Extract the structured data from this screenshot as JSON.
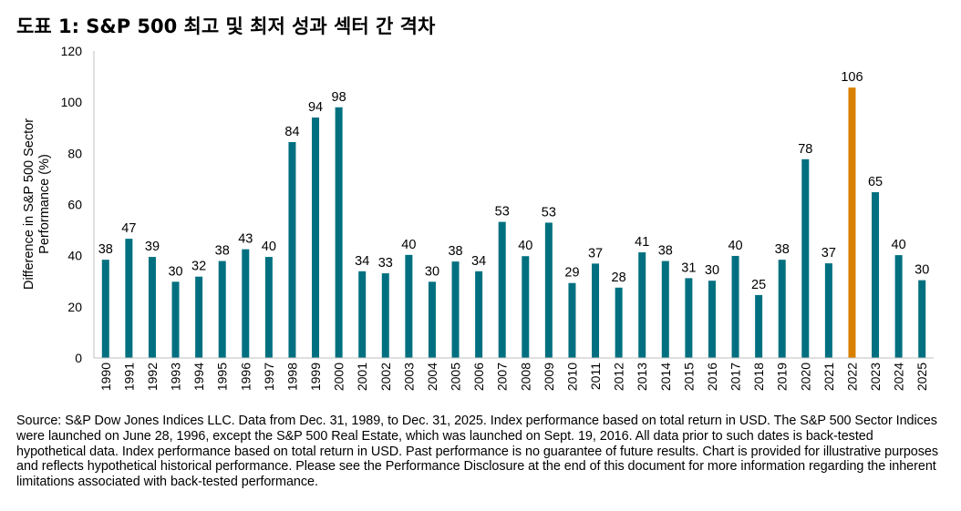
{
  "title": "도표 1: S&P 500 최고 및 최저 성과 섹터 간 격차",
  "source_note": "Source: S&P Dow Jones Indices LLC.  Data from Dec. 31, 1989, to Dec. 31, 2025.  Index performance based on total return in USD.  The S&P 500 Sector Indices were launched on June 28, 1996, except the S&P 500 Real Estate, which was launched on Sept. 19, 2016.  All data prior to such dates is back-tested hypothetical data.  Index performance based on total return in USD.  Past performance is no guarantee of future results.  Chart is provided for illustrative purposes and reflects hypothetical historical performance.  Please see the Performance Disclosure at the end of this document for more information regarding the inherent limitations associated with back-tested performance.",
  "colors": {
    "bar": "#007080",
    "highlight": "#d98000",
    "axis": "#bfbfbf"
  },
  "chart_data": {
    "type": "bar",
    "title": "도표 1: S&P 500 최고 및 최저 성과 섹터 간 격차",
    "xlabel": "",
    "ylabel_lines": [
      "Difference in S&P 500 Sector",
      "Performance (%)"
    ],
    "ylim": [
      0,
      120
    ],
    "yticks": [
      0,
      20,
      40,
      60,
      80,
      100,
      120
    ],
    "grid": false,
    "categories": [
      "1990",
      "1991",
      "1992",
      "1993",
      "1994",
      "1995",
      "1996",
      "1997",
      "1998",
      "1999",
      "2000",
      "2001",
      "2002",
      "2003",
      "2004",
      "2005",
      "2006",
      "2007",
      "2008",
      "2009",
      "2010",
      "2011",
      "2012",
      "2013",
      "2014",
      "2015",
      "2016",
      "2017",
      "2018",
      "2019",
      "2020",
      "2021",
      "2022",
      "2023",
      "2024",
      "2025"
    ],
    "values": [
      38,
      47,
      39,
      30,
      32,
      38,
      43,
      40,
      84,
      94,
      98,
      34,
      33,
      40,
      30,
      38,
      34,
      53,
      40,
      53,
      29,
      37,
      28,
      41,
      38,
      31,
      30,
      40,
      25,
      38,
      78,
      37,
      106,
      65,
      40,
      30
    ],
    "plotted_values": [
      38.4,
      46.6,
      39.5,
      29.8,
      31.8,
      37.9,
      42.5,
      39.5,
      84.4,
      94.0,
      98.0,
      33.9,
      33.1,
      40.3,
      29.8,
      37.7,
      33.9,
      53.2,
      39.8,
      52.9,
      29.3,
      36.9,
      27.5,
      41.3,
      37.9,
      31.2,
      30.2,
      39.9,
      24.6,
      38.4,
      77.7,
      37.0,
      105.7,
      64.8,
      40.2,
      30.4
    ],
    "highlight_category": "2022"
  }
}
